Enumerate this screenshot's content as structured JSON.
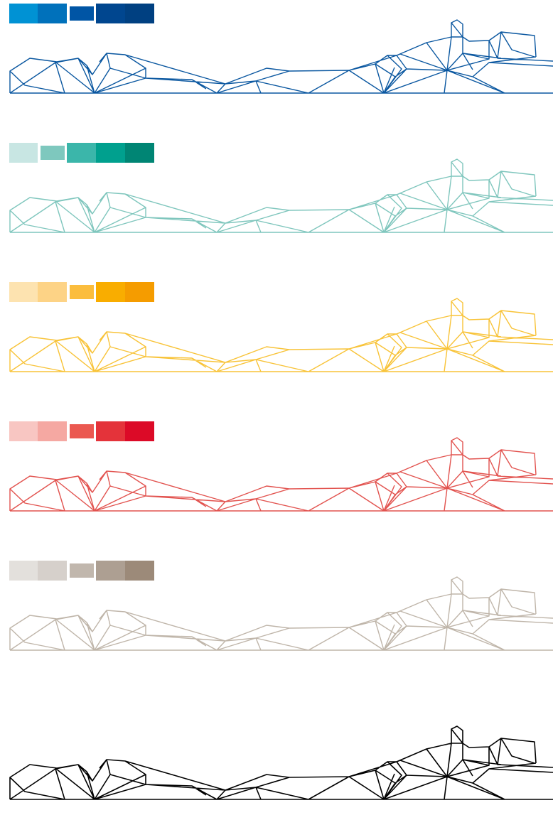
{
  "palettes": [
    {
      "name": "blue",
      "line_color": "#0a57a0",
      "swatches": [
        "#0092d4",
        "#0071bb",
        "#0055a5",
        "#00468f",
        "#004081"
      ]
    },
    {
      "name": "teal",
      "line_color": "#7fc6bd",
      "swatches": [
        "#c8e6e3",
        "#7ec8be",
        "#3bb6aa",
        "#00a08e",
        "#008574"
      ]
    },
    {
      "name": "yellow",
      "line_color": "#f8c338",
      "swatches": [
        "#fde3b0",
        "#fdd386",
        "#fbbd3d",
        "#f9ad00",
        "#f59c00"
      ]
    },
    {
      "name": "red",
      "line_color": "#e2534f",
      "swatches": [
        "#f8c6c2",
        "#f5a8a2",
        "#eb5850",
        "#e4333a",
        "#dc0a27"
      ]
    },
    {
      "name": "taupe",
      "line_color": "#bfb5a9",
      "swatches": [
        "#e3e0dc",
        "#d6d0cb",
        "#c1b7ad",
        "#ad9f92",
        "#9c8a79"
      ]
    },
    {
      "name": "black",
      "line_color": "#000000",
      "swatches": []
    }
  ]
}
